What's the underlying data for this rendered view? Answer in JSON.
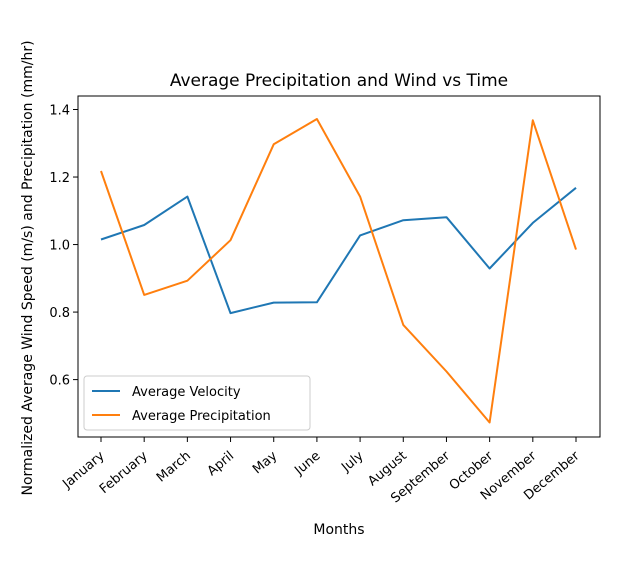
{
  "chart_data": {
    "type": "line",
    "title": "Average Precipitation and Wind vs Time",
    "xlabel": "Months",
    "ylabel": "Normalized Average Wind Speed (m/s) and Precipitation (mm/hr)",
    "categories": [
      "January",
      "February",
      "March",
      "April",
      "May",
      "June",
      "July",
      "August",
      "September",
      "October",
      "November",
      "December"
    ],
    "ylim": [
      0.43,
      1.44
    ],
    "yticks": [
      0.6,
      0.8,
      1.0,
      1.2,
      1.4
    ],
    "ytick_labels": [
      "0.6",
      "0.8",
      "1.0",
      "1.2",
      "1.4"
    ],
    "grid": false,
    "legend_position": "lower-left",
    "series": [
      {
        "name": "Average Velocity",
        "color": "#1f77b4",
        "values": [
          1.015,
          1.058,
          1.142,
          0.797,
          0.828,
          0.829,
          1.027,
          1.072,
          1.081,
          0.929,
          1.064,
          1.168
        ]
      },
      {
        "name": "Average Precipitation",
        "color": "#ff7f0e",
        "values": [
          1.218,
          0.851,
          0.893,
          1.013,
          1.297,
          1.372,
          1.142,
          0.762,
          0.624,
          0.473,
          1.368,
          0.985
        ]
      }
    ]
  }
}
